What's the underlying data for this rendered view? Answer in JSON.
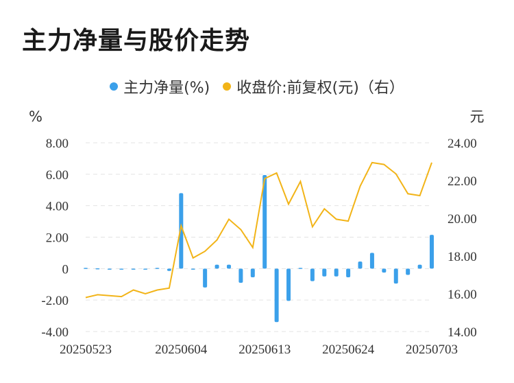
{
  "title": "主力净量与股价走势",
  "colors": {
    "bar": "#3ba0ea",
    "line": "#f2b418",
    "grid": "#e3e3e3"
  },
  "chart_data": {
    "type": "bar+line",
    "title": "主力净量与股价走势",
    "legend_position": "top-center",
    "grid": true,
    "left_axis": {
      "unit": "%",
      "ylim": [
        -4,
        8
      ],
      "ticks": [
        "8.00",
        "6.00",
        "4.00",
        "2.00",
        "0",
        "-2.00",
        "-4.00"
      ]
    },
    "right_axis": {
      "unit": "元",
      "ylim": [
        14,
        24
      ],
      "ticks": [
        "24.00",
        "22.00",
        "20.00",
        "18.00",
        "16.00",
        "14.00"
      ]
    },
    "x_tick_labels": [
      "20250523",
      "20250604",
      "20250613",
      "20250624",
      "20250703"
    ],
    "x_tick_indices": [
      0,
      8,
      15,
      22,
      29
    ],
    "series": [
      {
        "name": "主力净量(%)",
        "type": "bar",
        "axis": "left",
        "values": [
          0.05,
          0.02,
          -0.05,
          0.0,
          -0.03,
          -0.05,
          0.05,
          -0.15,
          4.8,
          -0.05,
          -1.2,
          0.25,
          0.25,
          -0.9,
          -0.55,
          5.95,
          -3.4,
          -2.05,
          0.05,
          -0.8,
          -0.5,
          -0.5,
          -0.55,
          0.45,
          1.0,
          -0.25,
          -0.95,
          -0.4,
          0.25,
          2.15
        ]
      },
      {
        "name": "收盘价:前复权(元)（右）",
        "type": "line",
        "axis": "right",
        "values": [
          15.8,
          15.95,
          15.9,
          15.85,
          16.2,
          16.0,
          16.2,
          16.3,
          19.6,
          17.9,
          18.25,
          18.85,
          19.95,
          19.4,
          18.45,
          22.1,
          22.4,
          20.75,
          21.95,
          19.55,
          20.5,
          19.95,
          19.85,
          21.7,
          22.95,
          22.85,
          22.35,
          21.3,
          21.2,
          22.95
        ]
      }
    ]
  }
}
